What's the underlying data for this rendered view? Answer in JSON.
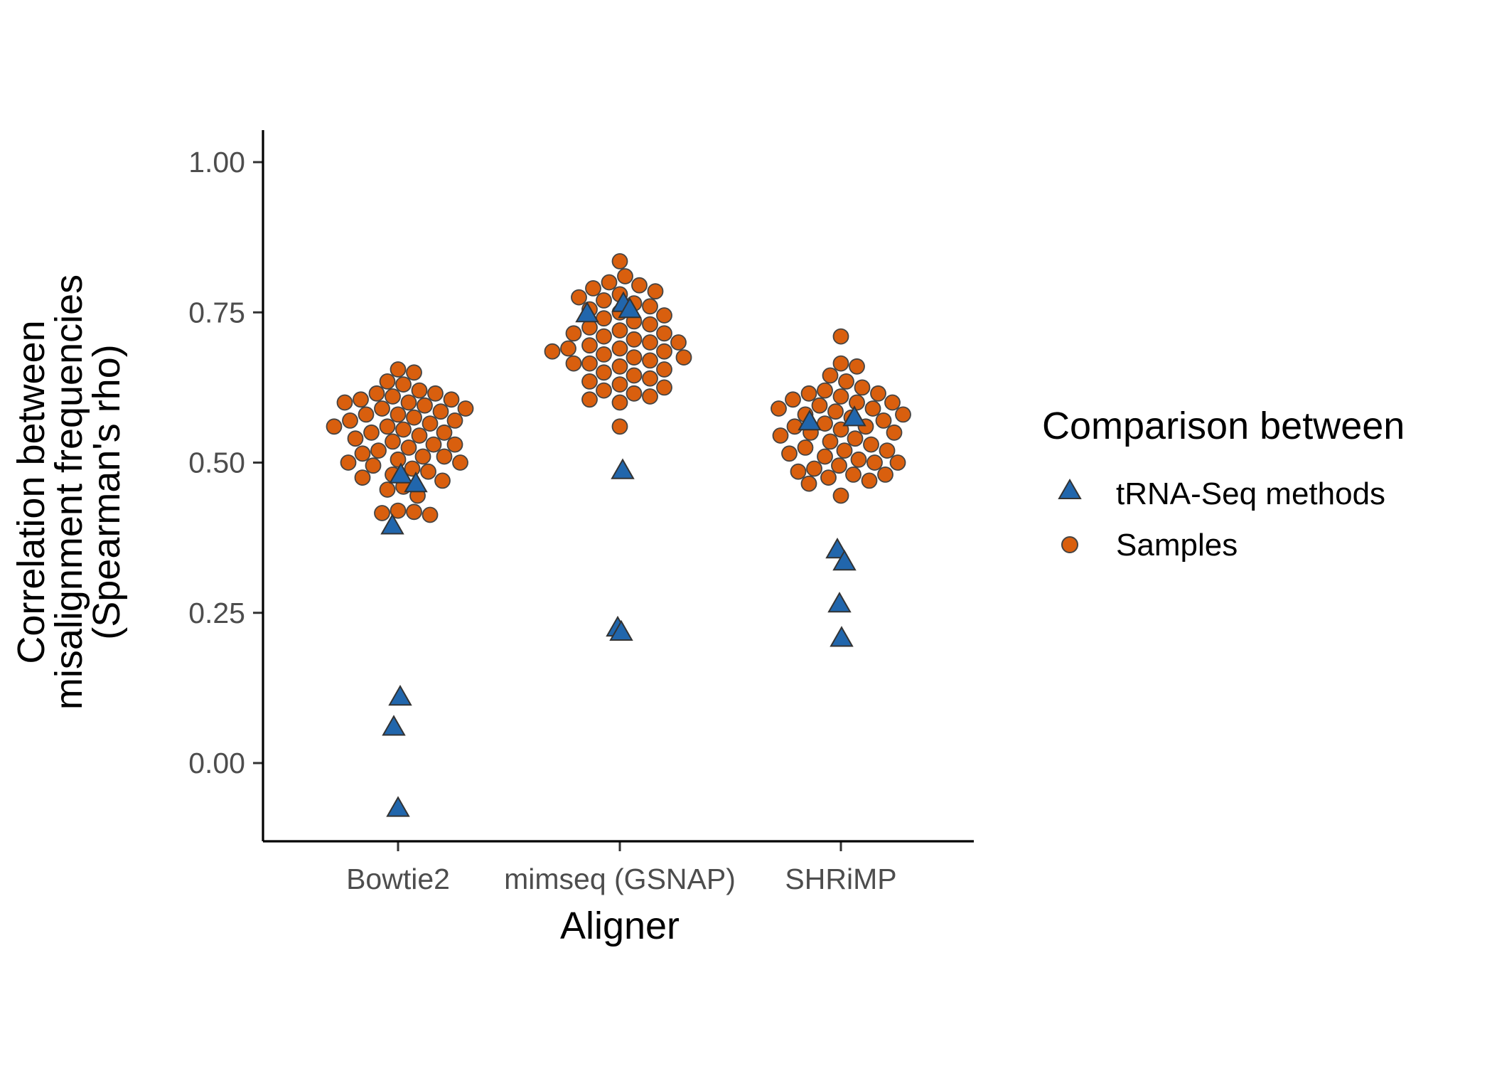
{
  "chart_data": {
    "type": "scatter",
    "title": "",
    "xlabel": "Aligner",
    "ylabel_lines": [
      "Correlation between",
      "misalignment frequencies",
      "(Spearman's rho)"
    ],
    "categories": [
      "Bowtie2",
      "mimseq (GSNAP)",
      "SHRiMP"
    ],
    "ylim": [
      -0.13,
      1.055
    ],
    "yticks": [
      0.0,
      0.25,
      0.5,
      0.75,
      1.0
    ],
    "ytick_labels": [
      "0.00",
      "0.25",
      "0.50",
      "0.75",
      "1.00"
    ],
    "grid": false,
    "legend": {
      "title": "Comparison between",
      "position": "right",
      "entries": [
        {
          "label": "tRNA-Seq methods",
          "shape": "triangle",
          "color": "#2166ac"
        },
        {
          "label": "Samples",
          "shape": "circle",
          "color": "#d95f0e"
        }
      ]
    },
    "series": [
      {
        "name": "tRNA-Seq methods",
        "shape": "triangle",
        "color": "#2166ac",
        "points": [
          {
            "category": "Bowtie2",
            "y": 0.48
          },
          {
            "category": "Bowtie2",
            "y": 0.465
          },
          {
            "category": "Bowtie2",
            "y": 0.395
          },
          {
            "category": "Bowtie2",
            "y": 0.11
          },
          {
            "category": "Bowtie2",
            "y": 0.06
          },
          {
            "category": "Bowtie2",
            "y": -0.075
          },
          {
            "category": "mimseq (GSNAP)",
            "y": 0.765
          },
          {
            "category": "mimseq (GSNAP)",
            "y": 0.755
          },
          {
            "category": "mimseq (GSNAP)",
            "y": 0.748
          },
          {
            "category": "mimseq (GSNAP)",
            "y": 0.487
          },
          {
            "category": "mimseq (GSNAP)",
            "y": 0.225
          },
          {
            "category": "mimseq (GSNAP)",
            "y": 0.218
          },
          {
            "category": "SHRiMP",
            "y": 0.575
          },
          {
            "category": "SHRiMP",
            "y": 0.568
          },
          {
            "category": "SHRiMP",
            "y": 0.355
          },
          {
            "category": "SHRiMP",
            "y": 0.335
          },
          {
            "category": "SHRiMP",
            "y": 0.265
          },
          {
            "category": "SHRiMP",
            "y": 0.208
          }
        ]
      },
      {
        "name": "Samples",
        "shape": "circle",
        "color": "#d95f0e",
        "points": {
          "Bowtie2": [
            0.655,
            0.65,
            0.635,
            0.63,
            0.62,
            0.615,
            0.615,
            0.61,
            0.605,
            0.605,
            0.6,
            0.6,
            0.595,
            0.59,
            0.59,
            0.585,
            0.58,
            0.58,
            0.575,
            0.57,
            0.57,
            0.565,
            0.56,
            0.56,
            0.555,
            0.55,
            0.55,
            0.545,
            0.54,
            0.535,
            0.53,
            0.53,
            0.525,
            0.52,
            0.515,
            0.51,
            0.51,
            0.505,
            0.5,
            0.5,
            0.495,
            0.49,
            0.485,
            0.48,
            0.475,
            0.47,
            0.46,
            0.455,
            0.445,
            0.42,
            0.418,
            0.416,
            0.413
          ],
          "mimseq (GSNAP)": [
            0.835,
            0.81,
            0.8,
            0.795,
            0.79,
            0.785,
            0.78,
            0.775,
            0.77,
            0.765,
            0.76,
            0.755,
            0.75,
            0.745,
            0.74,
            0.735,
            0.73,
            0.725,
            0.72,
            0.715,
            0.715,
            0.71,
            0.705,
            0.7,
            0.7,
            0.695,
            0.69,
            0.69,
            0.685,
            0.685,
            0.68,
            0.675,
            0.675,
            0.67,
            0.665,
            0.665,
            0.66,
            0.655,
            0.65,
            0.645,
            0.64,
            0.635,
            0.63,
            0.625,
            0.62,
            0.615,
            0.61,
            0.605,
            0.6,
            0.56
          ],
          "SHRiMP": [
            0.71,
            0.665,
            0.66,
            0.645,
            0.635,
            0.625,
            0.62,
            0.615,
            0.615,
            0.61,
            0.605,
            0.6,
            0.6,
            0.595,
            0.59,
            0.59,
            0.585,
            0.58,
            0.58,
            0.575,
            0.57,
            0.565,
            0.56,
            0.56,
            0.555,
            0.55,
            0.55,
            0.545,
            0.54,
            0.535,
            0.53,
            0.525,
            0.52,
            0.52,
            0.515,
            0.51,
            0.505,
            0.5,
            0.5,
            0.495,
            0.49,
            0.485,
            0.48,
            0.48,
            0.475,
            0.47,
            0.465,
            0.445
          ]
        }
      }
    ]
  }
}
